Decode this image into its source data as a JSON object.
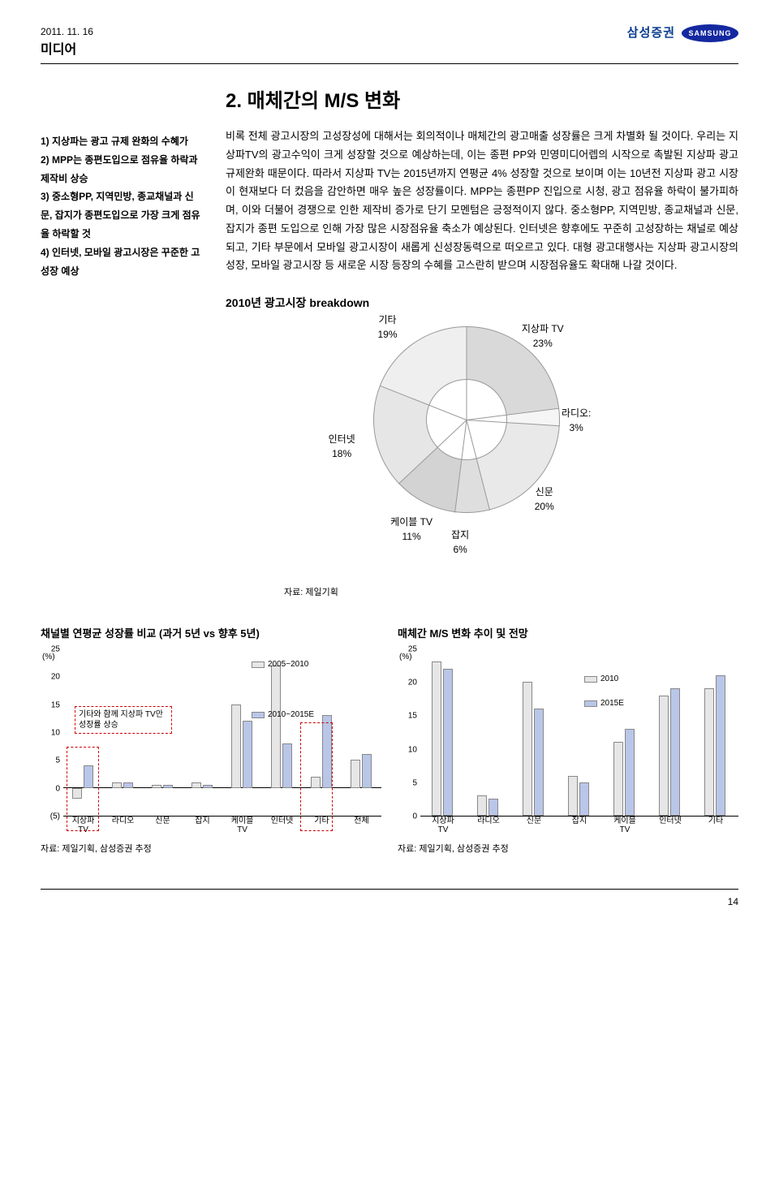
{
  "header": {
    "date": "2011. 11. 16",
    "category": "미디어",
    "brand": "삼성증권",
    "logo_text": "SAMSUNG"
  },
  "side": {
    "line1": "1) 지상파는 광고 규제 완화의 수혜가",
    "line2": "2) MPP는 종편도입으로 점유율 하락과 제작비 상승",
    "line3": "3) 중소형PP, 지역민방, 종교채널과 신문, 잡지가 종편도입으로 가장 크게 점유율 하락할 것",
    "line4": "4) 인터넷, 모바일 광고시장은 꾸준한 고성장 예상"
  },
  "main": {
    "title": "2. 매체간의 M/S 변화",
    "body": "비록 전체 광고시장의 고성장성에 대해서는 회의적이나 매체간의 광고매출 성장률은 크게 차별화 될 것이다. 우리는 지상파TV의 광고수익이 크게 성장할 것으로 예상하는데, 이는 종편 PP와 민영미디어렙의 시작으로 촉발된 지상파 광고 규제완화 때문이다. 따라서 지상파 TV는 2015년까지 연평균 4% 성장할 것으로 보이며 이는 10년전 지상파 광고 시장이 현재보다 더 컸음을 감안하면 매우 높은 성장률이다. MPP는 종편PP 진입으로 시청, 광고 점유율 하락이 불가피하며, 이와 더불어 경쟁으로 인한 제작비 증가로 단기 모멘텀은 긍정적이지 않다. 중소형PP, 지역민방, 종교채널과 신문, 잡지가 종편 도입으로 인해 가장 많은 시장점유율 축소가 예상된다. 인터넷은 향후에도 꾸준히 고성장하는 채널로 예상되고, 기타 부문에서 모바일 광고시장이 새롭게 신성장동력으로 떠오르고 있다. 대형 광고대행사는 지상파 광고시장의 성장, 모바일 광고시장 등 새로운 시장 등장의 수혜를 고스란히 받으며 시장점유율도 확대해 나갈 것이다."
  },
  "donut": {
    "title": "2010년 광고시장 breakdown",
    "segments": [
      {
        "label": "지상파 TV",
        "pct": "23%",
        "value": 23,
        "color": "#d9d9d9"
      },
      {
        "label": "라디오:",
        "pct": "3%",
        "value": 3,
        "color": "#f5f5f5"
      },
      {
        "label": "신문",
        "pct": "20%",
        "value": 20,
        "color": "#e9e9e9"
      },
      {
        "label": "잡지",
        "pct": "6%",
        "value": 6,
        "color": "#dedede"
      },
      {
        "label": "케이블 TV",
        "pct": "11%",
        "value": 11,
        "color": "#d3d3d3"
      },
      {
        "label": "인터넷",
        "pct": "18%",
        "value": 18,
        "color": "#e6e6e6"
      },
      {
        "label": "기타",
        "pct": "19%",
        "value": 19,
        "color": "#efefef"
      }
    ],
    "source": "자료: 제일기획"
  },
  "chart_left": {
    "title": "채널별 연평균 성장률 비교 (과거 5년 vs 향후 5년)",
    "ylabel": "(%)",
    "ylim": [
      -5,
      25
    ],
    "yticks": [
      -5,
      0,
      5,
      10,
      15,
      20,
      25
    ],
    "series": [
      {
        "name": "2005~2010",
        "color": "#e6e6e6"
      },
      {
        "name": "2010~2015E",
        "color": "#b9c6e8"
      }
    ],
    "categories": [
      "지상파\nTV",
      "라디오",
      "신문",
      "잡지",
      "케이블\nTV",
      "인터넷",
      "기타",
      "전체"
    ],
    "values_a": [
      -2,
      1,
      0.5,
      1,
      15,
      22,
      2,
      5
    ],
    "values_b": [
      4,
      1,
      0.5,
      0.5,
      12,
      8,
      13,
      6
    ],
    "annotation": "기타와 함께 지상파 TV만 성장률 상승",
    "source": "자료: 제일기획, 삼성증권 추정",
    "box_color": "#c00000"
  },
  "chart_right": {
    "title": "매체간 M/S 변화 추이 및 전망",
    "ylabel": "(%)",
    "ylim": [
      0,
      25
    ],
    "yticks": [
      0,
      5,
      10,
      15,
      20,
      25
    ],
    "series": [
      {
        "name": "2010",
        "color": "#e6e6e6"
      },
      {
        "name": "2015E",
        "color": "#b9c6e8"
      }
    ],
    "categories": [
      "지상파\nTV",
      "라디오",
      "신문",
      "잡지",
      "케이블\nTV",
      "인터넷",
      "기타"
    ],
    "values_a": [
      23,
      3,
      20,
      6,
      11,
      18,
      19
    ],
    "values_b": [
      22,
      2.5,
      16,
      5,
      13,
      19,
      21
    ],
    "source": "자료: 제일기획, 삼성증권 추정"
  },
  "footer": {
    "page": "14"
  }
}
